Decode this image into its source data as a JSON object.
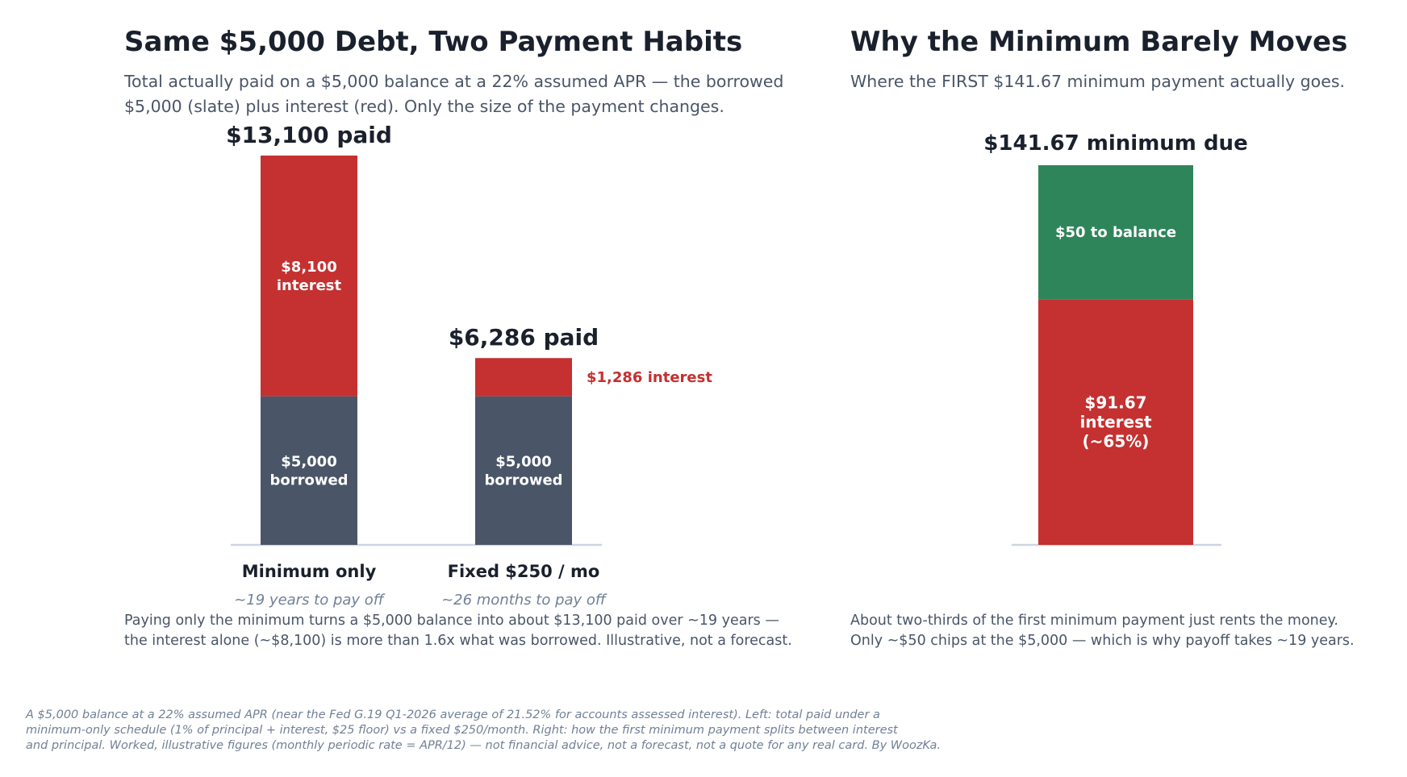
{
  "left_panel": {
    "title": "Same $5,000 Debt, Two Payment Habits",
    "subtitle_line1": "Total actually paid on a $5,000 balance at a 22% assumed APR — the borrowed",
    "subtitle_line2": "$5,000 (slate) plus interest (red). Only the size of the payment changes.",
    "caption_line1": "Paying only the minimum turns a $5,000 balance into about $13,100 paid over ~19 years —",
    "caption_line2": "the interest alone (~$8,100) is more than 1.6x what was borrowed. Illustrative, not a forecast."
  },
  "right_panel": {
    "title": "Why the Minimum Barely Moves",
    "subtitle": "Where the FIRST $141.67 minimum payment actually goes.",
    "caption_line1": "About two-thirds of the first minimum payment just rents the money.",
    "caption_line2": "Only ~$50 chips at the $5,000 — which is why payoff takes ~19 years."
  },
  "footnote": {
    "line1": "A $5,000 balance at a 22% assumed APR (near the Fed G.19 Q1-2026 average of 21.52% for accounts assessed interest). Left: total paid under a",
    "line2": "minimum-only schedule (1% of principal + interest, $25 floor) vs a fixed $250/month. Right: how the first minimum payment splits between interest",
    "line3": "and principal. Worked, illustrative figures (monthly periodic rate = APR/12) — not financial advice, not a forecast, not a quote for any real card. By WoozKa."
  },
  "colors": {
    "borrowed": "#4a5568",
    "interest": "#c53030",
    "principal": "#2f855a",
    "text_dark": "#1a202c",
    "muted": "#718096",
    "axis": "#cbd5e0"
  },
  "chart_data": [
    {
      "type": "bar",
      "stacked": true,
      "categories": [
        "Minimum only",
        "Fixed $250 / mo"
      ],
      "category_notes": [
        "~19 years to pay off",
        "~26 months to pay off"
      ],
      "series": [
        {
          "name": "borrowed",
          "values": [
            5000,
            5000
          ],
          "labels": [
            "$5,000\nborrowed",
            "$5,000\nborrowed"
          ]
        },
        {
          "name": "interest",
          "values": [
            8100,
            1286
          ],
          "labels": [
            "$8,100\ninterest",
            "$1,286 interest"
          ]
        }
      ],
      "total_labels": [
        "$13,100 paid",
        "$6,286 paid"
      ],
      "ylim": [
        0,
        13100
      ],
      "grid": false,
      "legend": "none"
    },
    {
      "type": "bar",
      "stacked": true,
      "categories": [
        ""
      ],
      "series": [
        {
          "name": "interest",
          "values": [
            91.67
          ],
          "labels": [
            "$91.67\ninterest\n(~65%)"
          ]
        },
        {
          "name": "principal",
          "values": [
            50
          ],
          "labels": [
            "$50 to balance"
          ]
        }
      ],
      "total_label": "$141.67 minimum due",
      "ylim": [
        0,
        141.67
      ],
      "grid": false,
      "legend": "none"
    }
  ]
}
